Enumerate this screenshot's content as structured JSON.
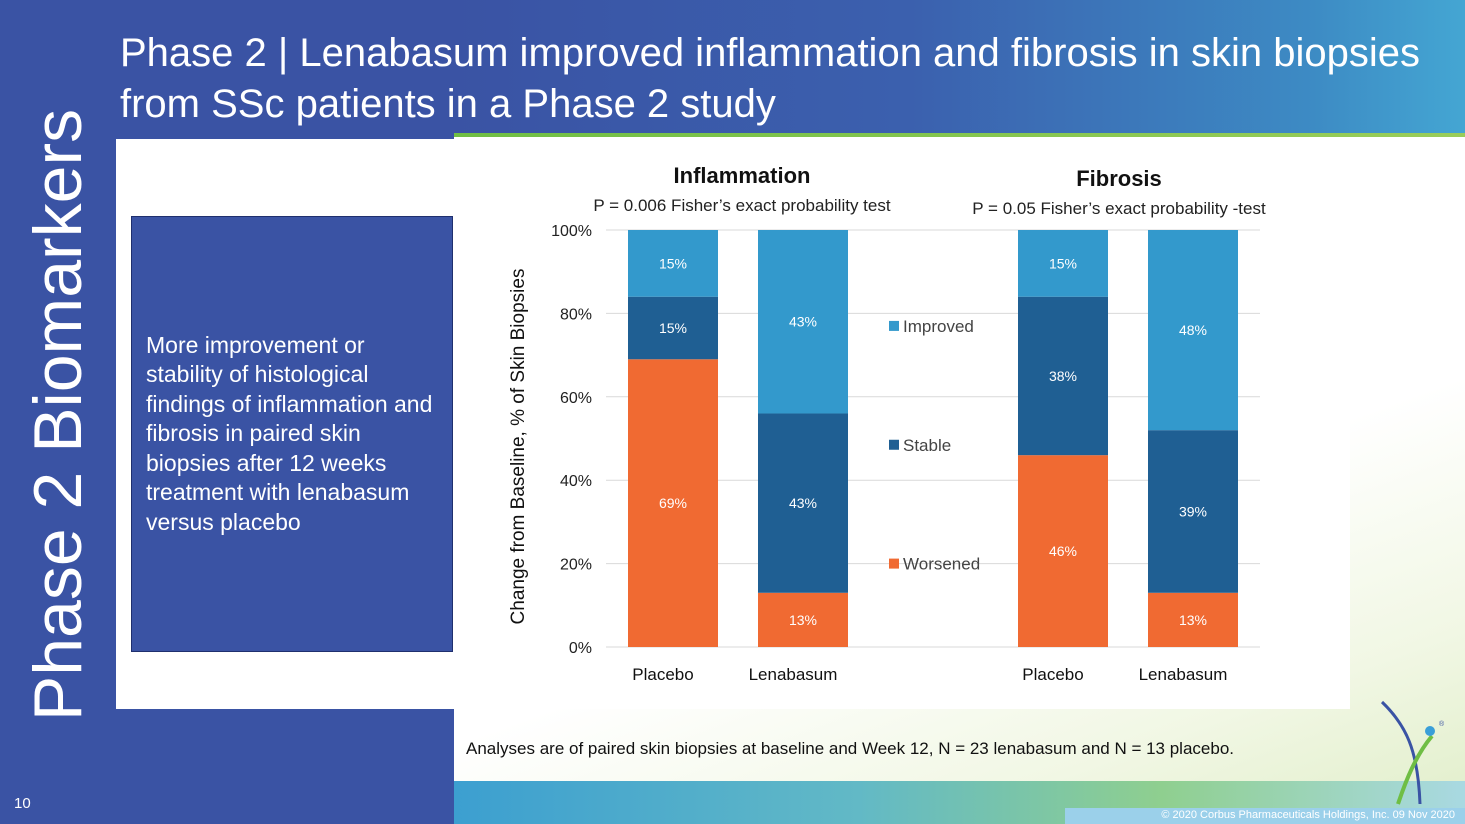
{
  "slide": {
    "title": "Phase 2  |  Lenabasum improved inflammation and fibrosis in skin biopsies from SSc patients in a Phase 2 study",
    "section_label": "Phase 2 Biomarkers",
    "page_number": "10",
    "callout": "More improvement or stability of histological findings of inflammation and fibrosis in paired skin biopsies after 12 weeks treatment with lenabasum versus placebo",
    "footnote": "Analyses are of paired skin biopsies at baseline and Week 12, N = 23 lenabasum and N = 13 placebo.",
    "copyright": "© 2020 Corbus Pharmaceuticals Holdings, Inc. 09 Nov 2020",
    "colors": {
      "primary_blue": "#3a53a4",
      "improved": "#3399cc",
      "stable": "#1f5f93",
      "worsened": "#f06a32",
      "accent_green": "#6fbe44"
    }
  },
  "chart_data": {
    "type": "bar",
    "stacked": true,
    "ylabel": "Change from Baseline, % of Skin Biopsies",
    "ylim": [
      0,
      100
    ],
    "yticks": [
      0,
      20,
      40,
      60,
      80,
      100
    ],
    "ytick_labels": [
      "0%",
      "20%",
      "40%",
      "60%",
      "80%",
      "100%"
    ],
    "grid": true,
    "legend": {
      "position": "center",
      "entries": [
        {
          "name": "Improved",
          "color": "#3399cc"
        },
        {
          "name": "Stable",
          "color": "#1f5f93"
        },
        {
          "name": "Worsened",
          "color": "#f06a32"
        }
      ]
    },
    "panels": [
      {
        "title": "Inflammation",
        "subtitle": "P = 0.006 Fisher’s exact probability test",
        "categories": [
          "Placebo",
          "Lenabasum"
        ],
        "series": [
          {
            "name": "Worsened",
            "values": [
              69,
              13
            ],
            "labels": [
              "69%",
              "13%"
            ]
          },
          {
            "name": "Stable",
            "values": [
              15,
              43
            ],
            "labels": [
              "15%",
              "43%"
            ]
          },
          {
            "name": "Improved",
            "values": [
              15,
              43
            ],
            "labels": [
              "15%",
              "43%"
            ]
          }
        ]
      },
      {
        "title": "Fibrosis",
        "subtitle": "P = 0.05 Fisher’s exact probability -test",
        "categories": [
          "Placebo",
          "Lenabasum"
        ],
        "series": [
          {
            "name": "Worsened",
            "values": [
              46,
              13
            ],
            "labels": [
              "46%",
              "13%"
            ]
          },
          {
            "name": "Stable",
            "values": [
              38,
              39
            ],
            "labels": [
              "38%",
              "39%"
            ]
          },
          {
            "name": "Improved",
            "values": [
              15,
              48
            ],
            "labels": [
              "15%",
              "48%"
            ]
          }
        ]
      }
    ]
  }
}
